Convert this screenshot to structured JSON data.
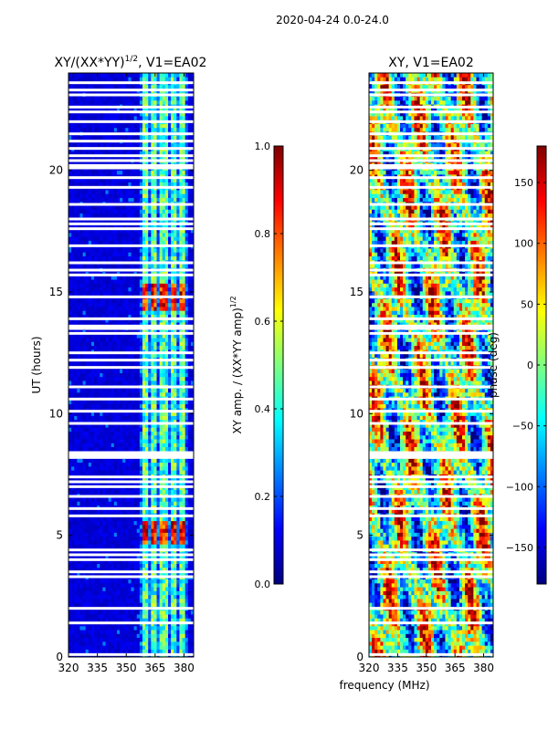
{
  "figure": {
    "suptitle": "2020-04-24 0.0-24.0",
    "xlabel": "frequency (MHz)"
  },
  "colors": {
    "jet": [
      "#00007f",
      "#0000ff",
      "#007fff",
      "#00ffff",
      "#7fff7f",
      "#ffff00",
      "#ff7f00",
      "#ff0000",
      "#7f0000"
    ],
    "flag": "#ffffff",
    "axis": "#000000"
  },
  "chart_data": [
    {
      "type": "heatmap",
      "title": "XY/(XX*YY)",
      "title_sup": "1/2",
      "title_suffix": ", V1=EA02",
      "ylabel": "UT (hours)",
      "x_ticks": [
        "320",
        "335",
        "350",
        "365",
        "380"
      ],
      "x_tick_values": [
        320,
        335,
        350,
        365,
        380
      ],
      "xlim": [
        320,
        385
      ],
      "y_ticks": [
        "0",
        "5",
        "10",
        "15",
        "20"
      ],
      "y_tick_values": [
        0,
        5,
        10,
        15,
        20
      ],
      "ylim": [
        0,
        24
      ],
      "band_columns_mhz": [
        [
          358,
          361
        ],
        [
          363,
          366
        ],
        [
          368,
          371
        ],
        [
          373,
          376
        ],
        [
          378,
          381
        ]
      ],
      "high_amplitude_times_hours": [
        [
          4.6,
          5.6
        ],
        [
          14.3,
          15.3
        ]
      ],
      "colorbar": {
        "label": "XY amp. / (XX*YY amp)",
        "label_sup": "1/2",
        "range": [
          0.0,
          1.0
        ],
        "ticks": [
          "0.0",
          "0.2",
          "0.4",
          "0.6",
          "0.8",
          "1.0"
        ],
        "tick_values": [
          0.0,
          0.2,
          0.4,
          0.6,
          0.8,
          1.0
        ]
      }
    },
    {
      "type": "heatmap",
      "title": "XY, V1=EA02",
      "ylabel": "",
      "x_ticks": [
        "320",
        "335",
        "350",
        "365",
        "380"
      ],
      "x_tick_values": [
        320,
        335,
        350,
        365,
        380
      ],
      "xlim": [
        320,
        385
      ],
      "y_ticks": [
        "0",
        "5",
        "10",
        "15",
        "20"
      ],
      "y_tick_values": [
        0,
        5,
        10,
        15,
        20
      ],
      "ylim": [
        0,
        24
      ],
      "colorbar": {
        "label": "phase (deg)",
        "range": [
          -180,
          180
        ],
        "ticks": [
          "−150",
          "−100",
          "−50",
          "0",
          "50",
          "100",
          "150"
        ],
        "tick_values": [
          -150,
          -100,
          -50,
          0,
          50,
          100,
          150
        ]
      }
    }
  ],
  "flagged_times_hours": [
    0.1,
    1.4,
    2.0,
    3.3,
    3.5,
    4.0,
    4.2,
    4.4,
    5.8,
    6.1,
    6.6,
    7.0,
    7.2,
    7.4,
    8.2,
    8.3,
    8.4,
    9.6,
    10.1,
    10.6,
    11.1,
    11.9,
    12.2,
    12.5,
    13.3,
    13.5,
    13.6,
    13.9,
    14.8,
    15.7,
    15.9,
    16.2,
    16.9,
    17.6,
    17.8,
    18.0,
    18.6,
    19.3,
    19.7,
    20.1,
    20.2,
    20.4,
    20.6,
    20.9,
    21.2,
    21.5,
    22.0,
    22.4,
    22.6,
    23.1,
    23.3,
    23.6
  ]
}
